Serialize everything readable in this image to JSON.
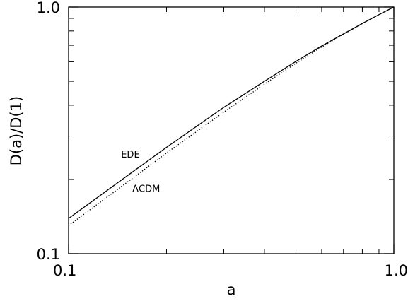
{
  "chart_data": {
    "type": "line",
    "title": "",
    "xlabel": "a",
    "ylabel": "D(a)/D(1)",
    "xscale": "log",
    "yscale": "log",
    "xlim": [
      0.1,
      1.0
    ],
    "ylim": [
      0.1,
      1.0
    ],
    "grid": false,
    "legend": "none",
    "xticks": [
      {
        "value": 0.1,
        "label": "0.1"
      },
      {
        "value": 1.0,
        "label": "1.0"
      }
    ],
    "yticks": [
      {
        "value": 0.1,
        "label": "0.1"
      },
      {
        "value": 1.0,
        "label": "1.0"
      }
    ],
    "series": [
      {
        "name": "EDE",
        "style": "solid",
        "color": "#000000",
        "x": [
          0.1,
          0.15,
          0.2,
          0.3,
          0.4,
          0.5,
          0.6,
          0.7,
          0.8,
          0.9,
          1.0
        ],
        "y": [
          0.139,
          0.205,
          0.27,
          0.392,
          0.5,
          0.602,
          0.695,
          0.778,
          0.858,
          0.932,
          1.0
        ]
      },
      {
        "name": "ΛCDM",
        "style": "dotted",
        "color": "#000000",
        "x": [
          0.1,
          0.15,
          0.2,
          0.3,
          0.4,
          0.5,
          0.6,
          0.7,
          0.8,
          0.9,
          1.0
        ],
        "y": [
          0.13,
          0.193,
          0.256,
          0.375,
          0.487,
          0.592,
          0.689,
          0.776,
          0.857,
          0.932,
          1.0
        ]
      }
    ],
    "annotations": [
      {
        "text": "EDE",
        "x": 0.145,
        "y": 0.245
      },
      {
        "text": "ΛCDM",
        "x": 0.157,
        "y": 0.178
      }
    ]
  }
}
